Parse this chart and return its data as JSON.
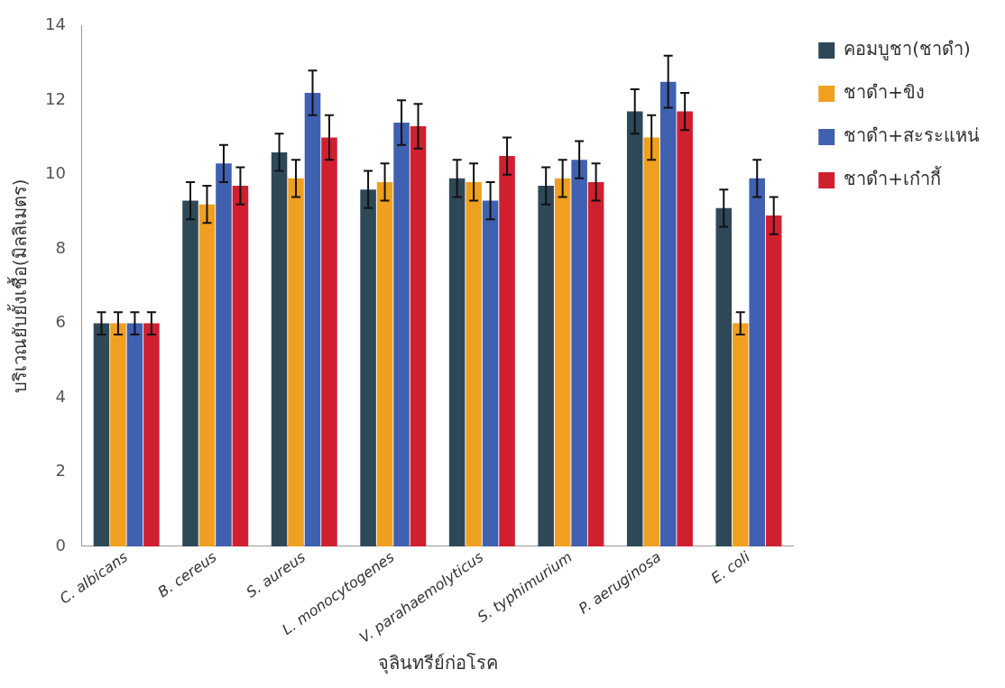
{
  "chart_data": {
    "type": "bar",
    "xlabel": "จุลินทรีย์ก่อโรค",
    "ylabel": "บริเวณยับยั้งเชื้อ(มิลลิเมตร)",
    "categories": [
      "C. albicans",
      "B. cereus",
      "S. aureus",
      "L. monocytogenes",
      "V. parahaemolyticus",
      "S. typhimurium",
      "P. aeruginosa",
      "E. coli"
    ],
    "series": [
      {
        "name": "คอมบูชา(ชาดำ)",
        "color": "#2f4858",
        "values": [
          6,
          9.3,
          10.6,
          9.6,
          9.9,
          9.7,
          11.7,
          9.1
        ],
        "errors": [
          0.3,
          0.5,
          0.5,
          0.5,
          0.5,
          0.5,
          0.6,
          0.5
        ]
      },
      {
        "name": "ชาดำ+ขิง",
        "color": "#f0a020",
        "values": [
          6,
          9.2,
          9.9,
          9.8,
          9.8,
          9.9,
          11,
          6
        ],
        "errors": [
          0.3,
          0.5,
          0.5,
          0.5,
          0.5,
          0.5,
          0.6,
          0.3
        ]
      },
      {
        "name": "ชาดำ+สะระแหน่",
        "color": "#4060b0",
        "values": [
          6,
          10.3,
          12.2,
          11.4,
          9.3,
          10.4,
          12.5,
          9.9
        ],
        "errors": [
          0.3,
          0.5,
          0.6,
          0.6,
          0.5,
          0.5,
          0.7,
          0.5
        ]
      },
      {
        "name": "ชาดำ+เก๋ากี้",
        "color": "#d02030",
        "values": [
          6,
          9.7,
          11,
          11.3,
          10.5,
          9.8,
          11.7,
          8.9
        ],
        "errors": [
          0.3,
          0.5,
          0.6,
          0.6,
          0.5,
          0.5,
          0.5,
          0.5
        ]
      }
    ],
    "ylim": [
      0,
      14
    ],
    "yticks": [
      0,
      2,
      4,
      6,
      8,
      10,
      12,
      14
    ],
    "grid": false,
    "legend": "right"
  }
}
